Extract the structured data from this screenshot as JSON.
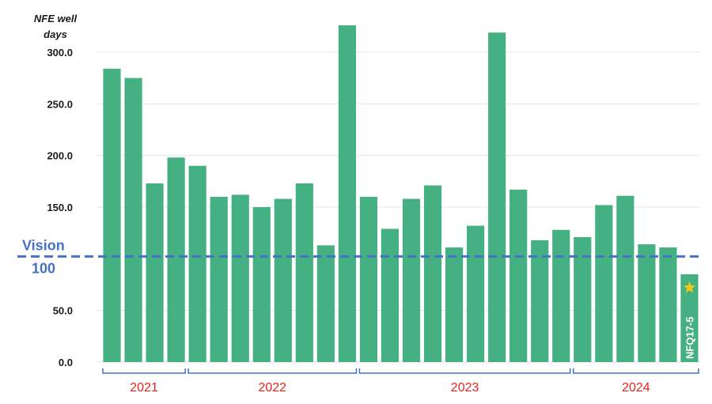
{
  "chart_data": {
    "type": "bar",
    "ylabel": "NFE well days",
    "ylim": [
      0,
      330
    ],
    "yticks": [
      "0.0",
      "50.0",
      "100",
      "150.0",
      "200.0",
      "250.0",
      "300.0"
    ],
    "grid": "horizontal",
    "values": [
      284,
      275,
      173,
      198,
      190,
      160,
      162,
      150,
      158,
      173,
      113,
      326,
      160,
      129,
      158,
      171,
      111,
      132,
      319,
      167,
      118,
      128,
      121,
      152,
      161,
      114,
      111,
      85
    ],
    "year_groups": [
      {
        "label": "2021",
        "first": 0,
        "last": 3
      },
      {
        "label": "2022",
        "first": 4,
        "last": 11
      },
      {
        "label": "2023",
        "first": 12,
        "last": 21
      },
      {
        "label": "2024",
        "first": 22,
        "last": 27
      }
    ],
    "vision": {
      "label": "Vision",
      "value_label": "100",
      "value": 100
    },
    "highlight": {
      "index": 27,
      "label": "NFQ17-5",
      "marker": "star-icon"
    },
    "colors": {
      "bar": "#45b081",
      "vision_line": "#4472c4",
      "year_text": "#e8231f",
      "bracket": "#4472c4",
      "grid": "#e4e4e4",
      "star": "#f5c518"
    }
  }
}
